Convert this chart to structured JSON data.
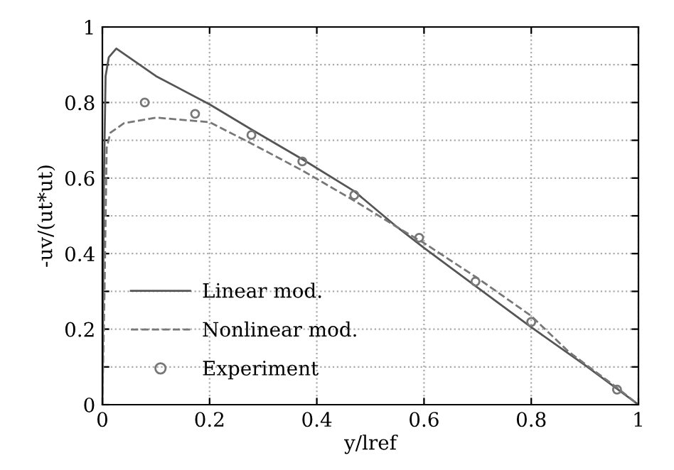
{
  "chart_data": {
    "type": "line",
    "xlabel": "y/lref",
    "ylabel": "-uv/(ut*ut)",
    "xlim": [
      0,
      1
    ],
    "ylim": [
      0,
      1
    ],
    "xticks": [
      0,
      0.2,
      0.4,
      0.6,
      0.8,
      1
    ],
    "yticks": [
      0,
      {
        "value": 0.1,
        "label": null
      },
      0.2,
      {
        "value": 0.3,
        "label": null
      },
      0.4,
      {
        "value": 0.5,
        "label": null
      },
      0.6,
      {
        "value": 0.7,
        "label": null
      },
      0.8,
      {
        "value": 0.9,
        "label": null
      },
      1
    ],
    "grid": true,
    "legend": "bottom left",
    "series": [
      {
        "name": "Linear mod.",
        "line_style": "solid",
        "marker": "none",
        "color": "#555555",
        "x": [
          0,
          0.003,
          0.006,
          0.012,
          0.026,
          0.1,
          0.2,
          0.28,
          0.373,
          0.47,
          0.55,
          0.6,
          0.7,
          0.8,
          0.9,
          1
        ],
        "values": [
          0,
          0.6,
          0.87,
          0.92,
          0.943,
          0.87,
          0.795,
          0.727,
          0.65,
          0.565,
          0.47,
          0.415,
          0.31,
          0.205,
          0.105,
          0
        ]
      },
      {
        "name": "Nonlinear mod.",
        "line_style": "dashed",
        "marker": "none",
        "color": "#777777",
        "x": [
          0,
          0.004,
          0.008,
          0.015,
          0.04,
          0.1,
          0.2,
          0.28,
          0.373,
          0.47,
          0.55,
          0.6,
          0.7,
          0.8,
          0.87,
          0.96,
          1
        ],
        "values": [
          0,
          0.3,
          0.68,
          0.72,
          0.745,
          0.76,
          0.748,
          0.69,
          0.62,
          0.54,
          0.47,
          0.428,
          0.335,
          0.235,
          0.14,
          0.045,
          0
        ]
      },
      {
        "name": "Experiment",
        "type": "scatter",
        "marker": "circle",
        "color": "#777777",
        "x": [
          0.079,
          0.173,
          0.278,
          0.373,
          0.47,
          0.591,
          0.696,
          0.8,
          0.96
        ],
        "values": [
          0.8,
          0.77,
          0.714,
          0.644,
          0.555,
          0.442,
          0.326,
          0.219,
          0.04
        ]
      }
    ]
  }
}
